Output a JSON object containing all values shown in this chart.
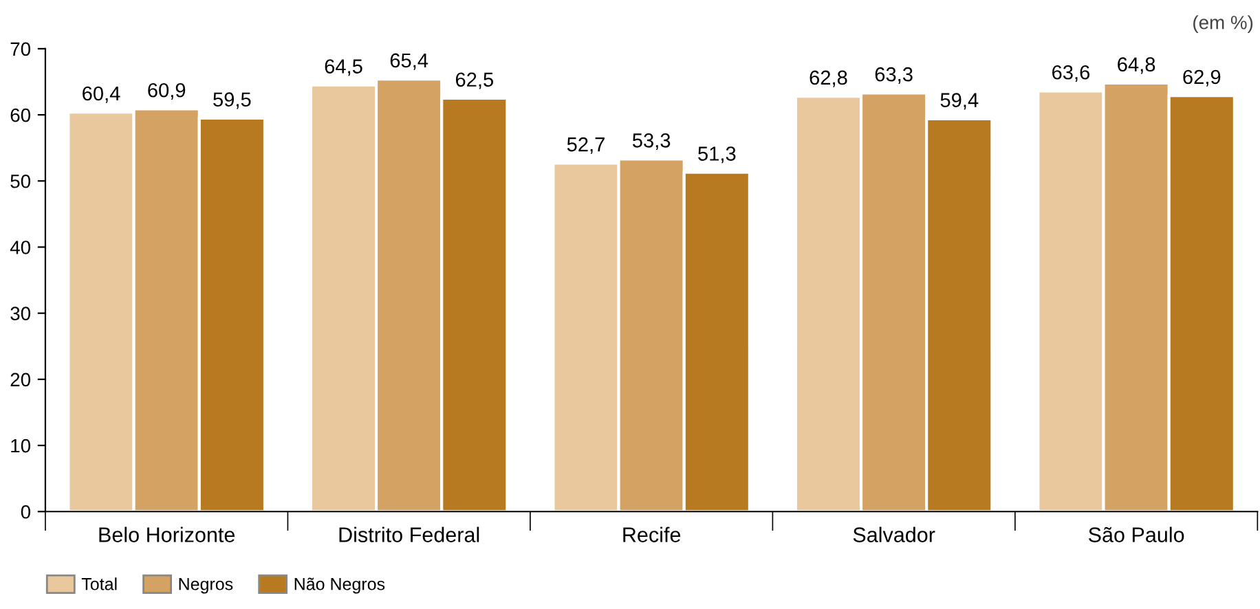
{
  "chart_data": {
    "type": "bar",
    "categories": [
      "Belo Horizonte",
      "Distrito Federal",
      "Recife",
      "Salvador",
      "São Paulo"
    ],
    "series": [
      {
        "name": "Total",
        "color": "#e8c89c",
        "values": [
          60.4,
          64.5,
          52.7,
          62.8,
          63.6
        ],
        "value_labels": [
          "60,4",
          "64,5",
          "52,7",
          "62,8",
          "63,6"
        ]
      },
      {
        "name": "Negros",
        "color": "#d4a263",
        "values": [
          60.9,
          65.4,
          53.3,
          63.3,
          64.8
        ],
        "value_labels": [
          "60,9",
          "65,4",
          "53,3",
          "63,3",
          "64,8"
        ]
      },
      {
        "name": "Não Negros",
        "color": "#b87a20",
        "values": [
          59.5,
          62.5,
          51.3,
          59.4,
          62.9
        ],
        "value_labels": [
          "59,5",
          "62,5",
          "51,3",
          "59,4",
          "62,9"
        ]
      }
    ],
    "ylim": [
      0,
      70
    ],
    "yticks": [
      0,
      10,
      20,
      30,
      40,
      50,
      60,
      70
    ],
    "annotations": [
      "(em %)"
    ],
    "grid": false,
    "legend": "bottom left"
  }
}
